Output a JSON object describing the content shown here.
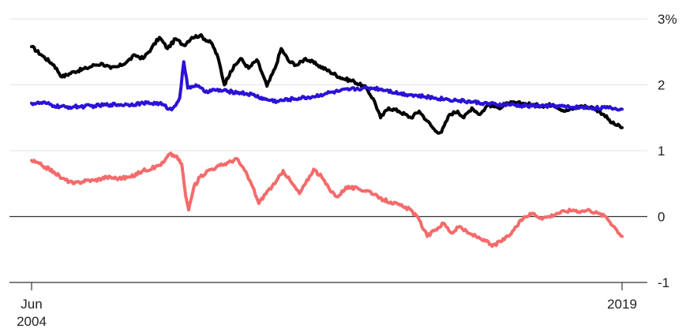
{
  "chart_data": {
    "type": "line",
    "title": "",
    "xlabel": "",
    "ylabel": "",
    "x_tick_labels": [
      {
        "x": 2004.45,
        "lines": [
          "Jun",
          "2004"
        ]
      },
      {
        "x": 2019.0,
        "lines": [
          "2019"
        ]
      }
    ],
    "y_tick_labels": [
      {
        "value": 3,
        "label": "3%"
      },
      {
        "value": 2,
        "label": "2"
      },
      {
        "value": 1,
        "label": "1"
      },
      {
        "value": 0,
        "label": "0"
      },
      {
        "value": -1,
        "label": "-1"
      }
    ],
    "xlim": [
      2004.45,
      2019.0
    ],
    "ylim": [
      -1,
      3
    ],
    "grid": true,
    "zero_line": true,
    "legend": "none",
    "series": [
      {
        "color": "#000000",
        "points": [
          [
            2004.45,
            2.58
          ],
          [
            2004.7,
            2.45
          ],
          [
            2005.0,
            2.3
          ],
          [
            2005.2,
            2.12
          ],
          [
            2005.5,
            2.2
          ],
          [
            2005.8,
            2.25
          ],
          [
            2006.0,
            2.3
          ],
          [
            2006.2,
            2.32
          ],
          [
            2006.4,
            2.25
          ],
          [
            2006.6,
            2.28
          ],
          [
            2006.8,
            2.35
          ],
          [
            2007.0,
            2.45
          ],
          [
            2007.2,
            2.4
          ],
          [
            2007.4,
            2.55
          ],
          [
            2007.6,
            2.72
          ],
          [
            2007.8,
            2.55
          ],
          [
            2008.0,
            2.7
          ],
          [
            2008.2,
            2.6
          ],
          [
            2008.4,
            2.72
          ],
          [
            2008.6,
            2.75
          ],
          [
            2008.9,
            2.62
          ],
          [
            2009.05,
            2.4
          ],
          [
            2009.2,
            2.0
          ],
          [
            2009.35,
            2.2
          ],
          [
            2009.6,
            2.4
          ],
          [
            2009.8,
            2.25
          ],
          [
            2010.0,
            2.38
          ],
          [
            2010.15,
            2.15
          ],
          [
            2010.25,
            1.98
          ],
          [
            2010.45,
            2.25
          ],
          [
            2010.6,
            2.55
          ],
          [
            2010.8,
            2.35
          ],
          [
            2011.0,
            2.3
          ],
          [
            2011.2,
            2.4
          ],
          [
            2011.5,
            2.3
          ],
          [
            2011.8,
            2.2
          ],
          [
            2012.1,
            2.1
          ],
          [
            2012.4,
            2.05
          ],
          [
            2012.7,
            1.95
          ],
          [
            2012.9,
            1.75
          ],
          [
            2013.05,
            1.5
          ],
          [
            2013.25,
            1.65
          ],
          [
            2013.5,
            1.6
          ],
          [
            2013.8,
            1.5
          ],
          [
            2014.0,
            1.6
          ],
          [
            2014.2,
            1.45
          ],
          [
            2014.4,
            1.3
          ],
          [
            2014.55,
            1.28
          ],
          [
            2014.75,
            1.55
          ],
          [
            2014.95,
            1.6
          ],
          [
            2015.1,
            1.5
          ],
          [
            2015.3,
            1.65
          ],
          [
            2015.5,
            1.55
          ],
          [
            2015.7,
            1.7
          ],
          [
            2015.95,
            1.65
          ],
          [
            2016.2,
            1.72
          ],
          [
            2016.5,
            1.72
          ],
          [
            2016.8,
            1.7
          ],
          [
            2017.0,
            1.68
          ],
          [
            2017.3,
            1.7
          ],
          [
            2017.6,
            1.6
          ],
          [
            2018.0,
            1.68
          ],
          [
            2018.3,
            1.65
          ],
          [
            2018.55,
            1.55
          ],
          [
            2018.75,
            1.42
          ],
          [
            2019.0,
            1.35
          ]
        ]
      },
      {
        "color": "#2a12d6",
        "points": [
          [
            2004.45,
            1.72
          ],
          [
            2004.8,
            1.72
          ],
          [
            2005.0,
            1.68
          ],
          [
            2005.3,
            1.66
          ],
          [
            2005.6,
            1.67
          ],
          [
            2006.0,
            1.68
          ],
          [
            2006.4,
            1.7
          ],
          [
            2006.8,
            1.7
          ],
          [
            2007.2,
            1.72
          ],
          [
            2007.6,
            1.72
          ],
          [
            2007.9,
            1.62
          ],
          [
            2008.1,
            1.8
          ],
          [
            2008.2,
            2.35
          ],
          [
            2008.3,
            1.95
          ],
          [
            2008.5,
            2.0
          ],
          [
            2008.7,
            1.9
          ],
          [
            2009.0,
            1.92
          ],
          [
            2009.3,
            1.9
          ],
          [
            2009.6,
            1.88
          ],
          [
            2009.9,
            1.85
          ],
          [
            2010.2,
            1.78
          ],
          [
            2010.5,
            1.75
          ],
          [
            2010.8,
            1.78
          ],
          [
            2011.1,
            1.8
          ],
          [
            2011.4,
            1.82
          ],
          [
            2011.7,
            1.87
          ],
          [
            2012.0,
            1.9
          ],
          [
            2012.3,
            1.93
          ],
          [
            2012.6,
            1.95
          ],
          [
            2012.9,
            1.95
          ],
          [
            2013.2,
            1.92
          ],
          [
            2013.5,
            1.87
          ],
          [
            2013.8,
            1.85
          ],
          [
            2014.1,
            1.82
          ],
          [
            2014.4,
            1.8
          ],
          [
            2014.7,
            1.78
          ],
          [
            2015.0,
            1.76
          ],
          [
            2015.3,
            1.74
          ],
          [
            2015.6,
            1.72
          ],
          [
            2015.9,
            1.7
          ],
          [
            2016.2,
            1.7
          ],
          [
            2016.5,
            1.68
          ],
          [
            2016.8,
            1.68
          ],
          [
            2017.1,
            1.68
          ],
          [
            2017.4,
            1.68
          ],
          [
            2017.7,
            1.66
          ],
          [
            2018.0,
            1.66
          ],
          [
            2018.3,
            1.65
          ],
          [
            2018.6,
            1.65
          ],
          [
            2018.8,
            1.64
          ],
          [
            2019.0,
            1.63
          ]
        ]
      },
      {
        "color": "#f46b6b",
        "points": [
          [
            2004.45,
            0.85
          ],
          [
            2004.7,
            0.78
          ],
          [
            2005.0,
            0.68
          ],
          [
            2005.2,
            0.58
          ],
          [
            2005.5,
            0.5
          ],
          [
            2005.8,
            0.55
          ],
          [
            2006.0,
            0.55
          ],
          [
            2006.3,
            0.6
          ],
          [
            2006.6,
            0.58
          ],
          [
            2006.9,
            0.6
          ],
          [
            2007.2,
            0.7
          ],
          [
            2007.5,
            0.75
          ],
          [
            2007.7,
            0.82
          ],
          [
            2007.85,
            0.95
          ],
          [
            2008.0,
            0.92
          ],
          [
            2008.15,
            0.8
          ],
          [
            2008.25,
            0.3
          ],
          [
            2008.32,
            0.1
          ],
          [
            2008.45,
            0.45
          ],
          [
            2008.6,
            0.6
          ],
          [
            2008.8,
            0.7
          ],
          [
            2009.0,
            0.75
          ],
          [
            2009.3,
            0.82
          ],
          [
            2009.5,
            0.88
          ],
          [
            2009.7,
            0.7
          ],
          [
            2009.9,
            0.45
          ],
          [
            2010.05,
            0.2
          ],
          [
            2010.25,
            0.38
          ],
          [
            2010.45,
            0.5
          ],
          [
            2010.65,
            0.7
          ],
          [
            2010.85,
            0.52
          ],
          [
            2011.05,
            0.35
          ],
          [
            2011.2,
            0.5
          ],
          [
            2011.4,
            0.72
          ],
          [
            2011.6,
            0.6
          ],
          [
            2011.8,
            0.4
          ],
          [
            2012.0,
            0.3
          ],
          [
            2012.2,
            0.45
          ],
          [
            2012.5,
            0.42
          ],
          [
            2012.8,
            0.38
          ],
          [
            2013.0,
            0.28
          ],
          [
            2013.3,
            0.22
          ],
          [
            2013.6,
            0.15
          ],
          [
            2013.8,
            0.1
          ],
          [
            2014.0,
            -0.05
          ],
          [
            2014.2,
            -0.3
          ],
          [
            2014.4,
            -0.2
          ],
          [
            2014.6,
            -0.1
          ],
          [
            2014.8,
            -0.25
          ],
          [
            2015.0,
            -0.15
          ],
          [
            2015.2,
            -0.25
          ],
          [
            2015.4,
            -0.3
          ],
          [
            2015.6,
            -0.35
          ],
          [
            2015.8,
            -0.45
          ],
          [
            2016.0,
            -0.38
          ],
          [
            2016.2,
            -0.3
          ],
          [
            2016.4,
            -0.15
          ],
          [
            2016.6,
            0.0
          ],
          [
            2016.8,
            0.05
          ],
          [
            2017.0,
            -0.02
          ],
          [
            2017.2,
            0.0
          ],
          [
            2017.4,
            0.05
          ],
          [
            2017.6,
            0.08
          ],
          [
            2017.8,
            0.1
          ],
          [
            2018.0,
            0.08
          ],
          [
            2018.2,
            0.1
          ],
          [
            2018.4,
            0.05
          ],
          [
            2018.6,
            0.0
          ],
          [
            2018.8,
            -0.15
          ],
          [
            2019.0,
            -0.3
          ]
        ]
      }
    ]
  }
}
